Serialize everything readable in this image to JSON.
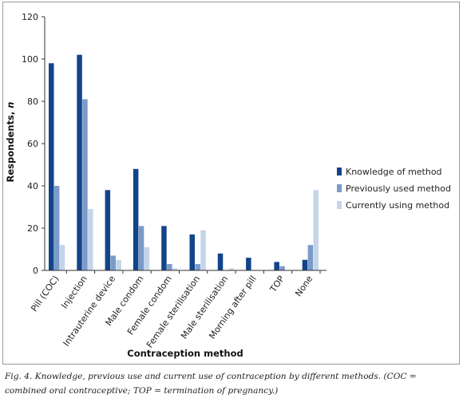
{
  "chart_data": {
    "type": "bar",
    "xlabel": "Contraception method",
    "ylabel": "Respondents,",
    "ylabel_var": "n",
    "ylim": [
      0,
      120
    ],
    "yticks": [
      0,
      20,
      40,
      60,
      80,
      100,
      120
    ],
    "grid": false,
    "legend_position": "right",
    "categories": [
      "Pill (COC)",
      "Injection",
      "Intrauterine device",
      "Male condom",
      "Female condom",
      "Female sterilisation",
      "Male sterilisation",
      "Morning after pill",
      "TOP",
      "None"
    ],
    "series": [
      {
        "name": "Knowledge of method",
        "color": "#12448a",
        "values": [
          98,
          102,
          38,
          48,
          21,
          17,
          8,
          6,
          4,
          5
        ]
      },
      {
        "name": "Previously used method",
        "color": "#7a9bc8",
        "values": [
          40,
          81,
          7,
          21,
          3,
          3,
          0,
          0,
          2,
          12
        ]
      },
      {
        "name": "Currently using method",
        "color": "#c4d5ea",
        "values": [
          12,
          29,
          5,
          11,
          1,
          19,
          1,
          0,
          0,
          38
        ]
      }
    ]
  },
  "caption": {
    "line1": "Fig. 4. Knowledge, previous use and current use of contraception by different methods. (COC =",
    "line2": "combined oral contraceptive; TOP = termination of pregnancy.)"
  }
}
